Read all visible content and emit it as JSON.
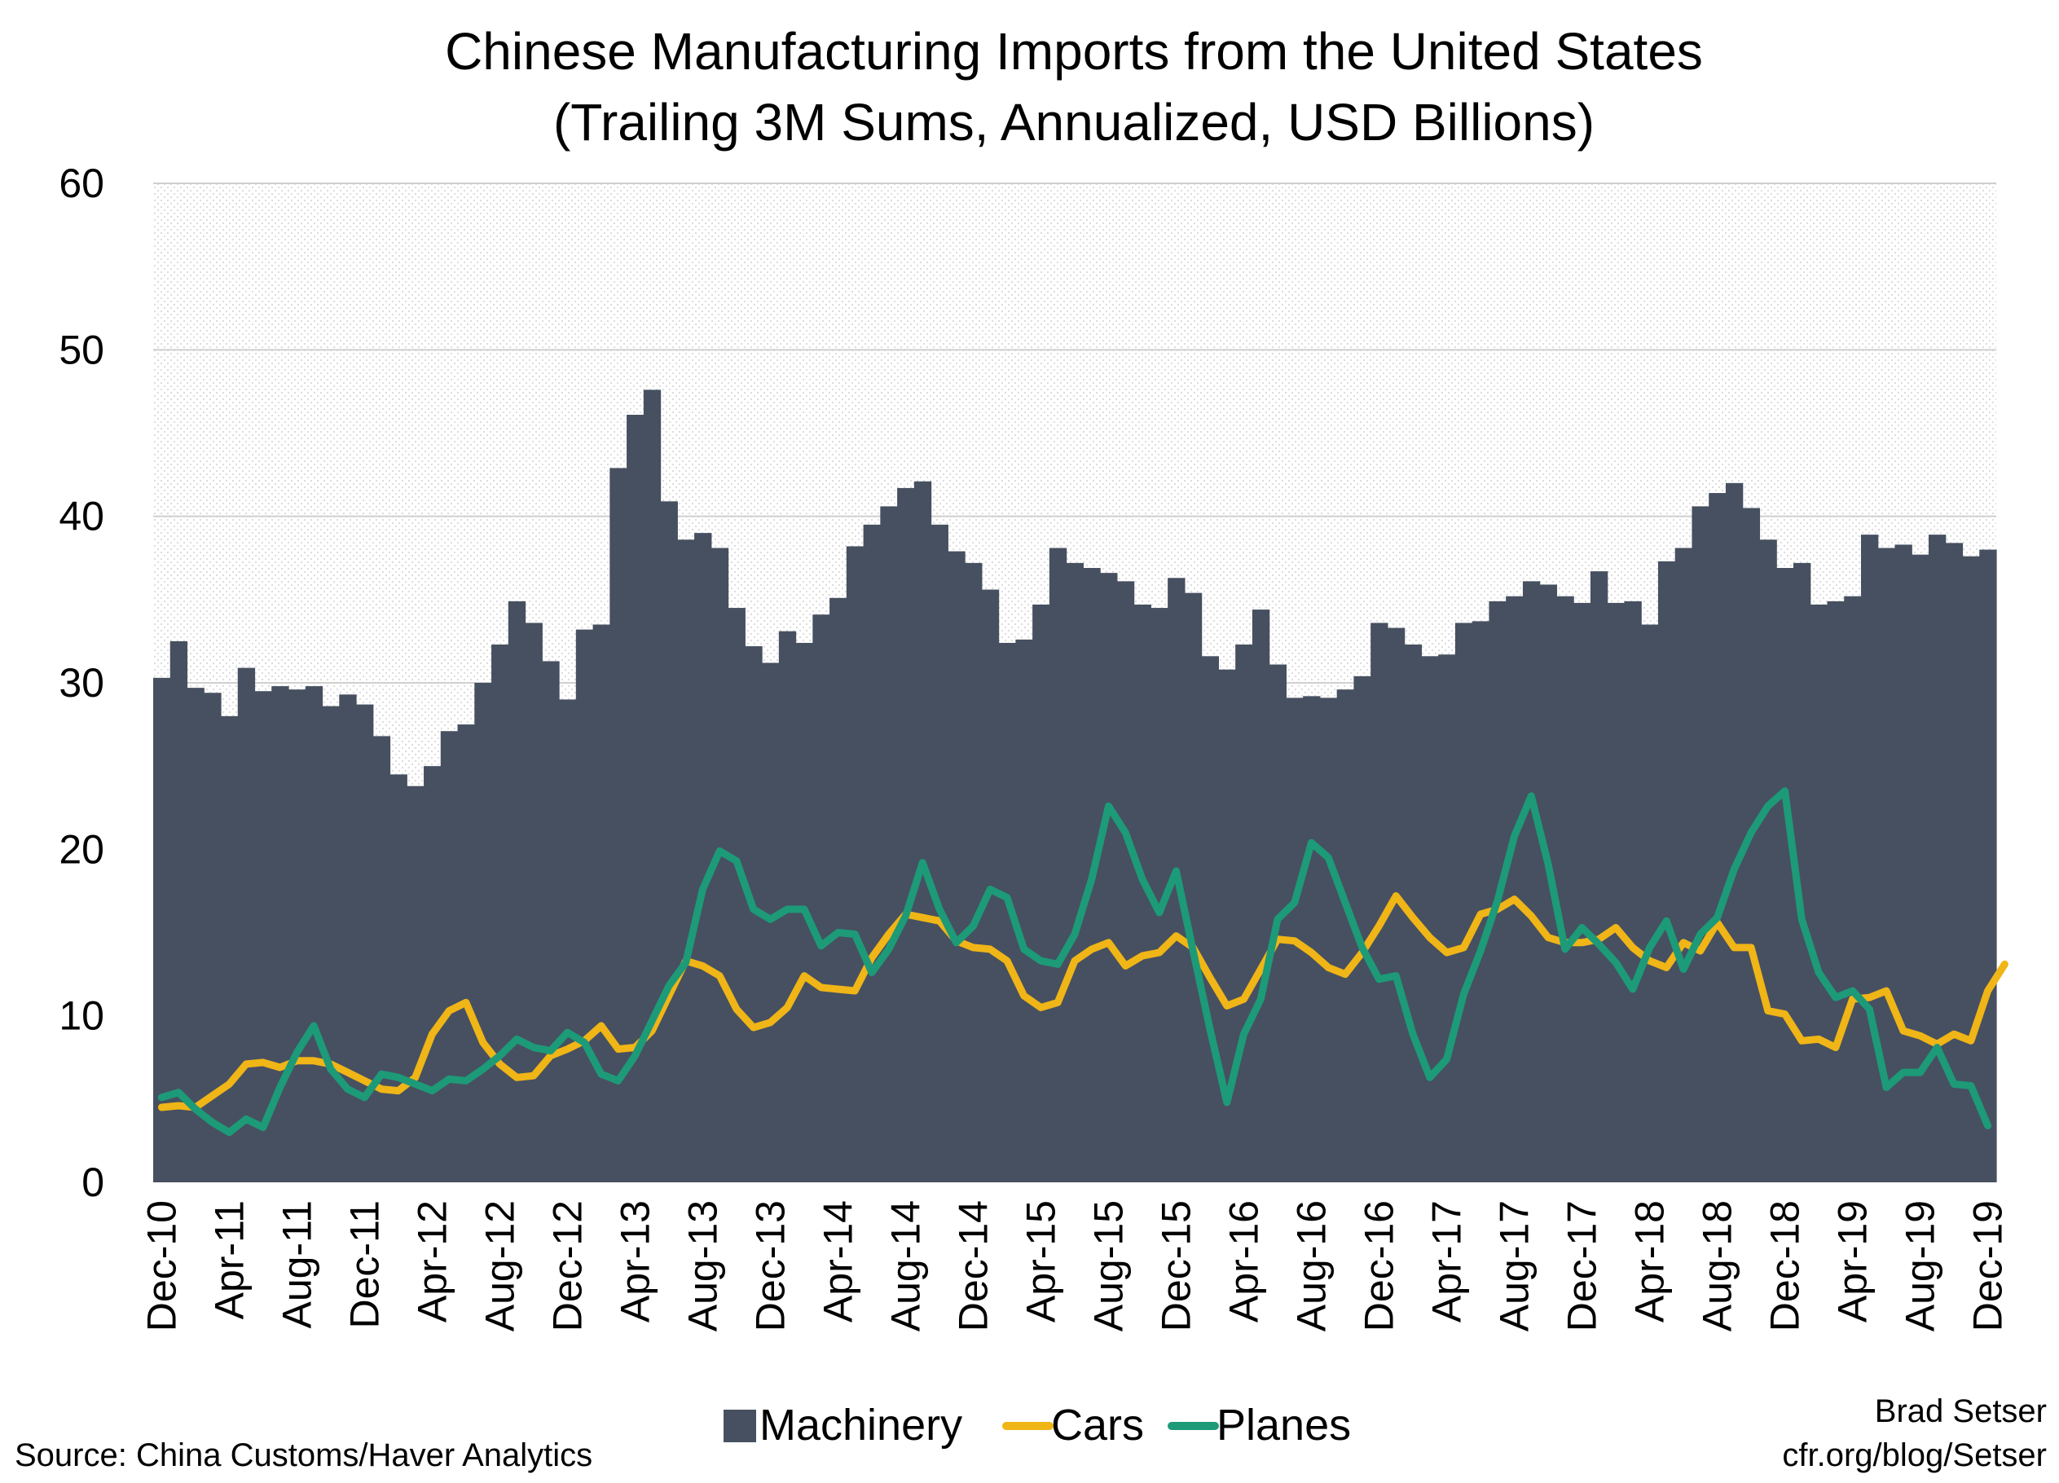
{
  "chart_data": {
    "type": "bar",
    "title": "Chinese Manufacturing Imports from the United States",
    "subtitle": "(Trailing 3M Sums, Annualized, USD Billions)",
    "ylim": [
      0,
      60
    ],
    "yticks": [
      0,
      10,
      20,
      30,
      40,
      50,
      60
    ],
    "xtick_labels": [
      "Dec-10",
      "Apr-11",
      "Aug-11",
      "Dec-11",
      "Apr-12",
      "Aug-12",
      "Dec-12",
      "Apr-13",
      "Aug-13",
      "Dec-13",
      "Apr-14",
      "Aug-14",
      "Dec-14",
      "Apr-15",
      "Aug-15",
      "Dec-15",
      "Apr-16",
      "Aug-16",
      "Dec-16",
      "Apr-17",
      "Aug-17",
      "Dec-17",
      "Apr-18",
      "Aug-18",
      "Dec-18",
      "Apr-19",
      "Aug-19",
      "Dec-19"
    ],
    "grid": true,
    "legend_position": "bottom",
    "series": [
      {
        "name": "Machinery",
        "kind": "bar",
        "color": "#465060",
        "values": [
          30.3,
          32.5,
          29.7,
          29.4,
          28.0,
          30.9,
          29.5,
          29.8,
          29.6,
          29.8,
          28.6,
          29.3,
          28.7,
          26.8,
          24.5,
          23.8,
          25.0,
          27.1,
          27.5,
          30.0,
          32.3,
          34.9,
          33.6,
          31.3,
          29.0,
          33.2,
          33.5,
          42.9,
          46.1,
          47.6,
          40.9,
          38.6,
          39.0,
          38.1,
          34.5,
          32.2,
          31.2,
          33.1,
          32.4,
          34.1,
          35.1,
          38.2,
          39.5,
          40.6,
          41.7,
          42.1,
          39.5,
          37.9,
          37.2,
          35.6,
          32.4,
          32.6,
          34.7,
          38.1,
          37.2,
          36.9,
          36.6,
          36.1,
          34.7,
          34.5,
          36.3,
          35.4,
          31.6,
          30.8,
          32.3,
          34.4,
          31.1,
          29.1,
          29.2,
          29.1,
          29.6,
          30.4,
          33.6,
          33.3,
          32.3,
          31.6,
          31.7,
          33.6,
          33.7,
          34.9,
          35.2,
          36.1,
          35.9,
          35.2,
          34.8,
          36.7,
          34.8,
          34.9,
          33.5,
          37.3,
          38.1,
          40.6,
          41.4,
          42.0,
          40.5,
          38.6,
          36.9,
          37.2,
          34.7,
          34.9,
          35.2,
          38.9,
          38.1,
          38.3,
          37.7,
          38.9,
          38.4,
          37.6,
          38.0
        ]
      },
      {
        "name": "Cars",
        "kind": "line",
        "color": "#F0B516",
        "values": [
          4.5,
          4.6,
          4.5,
          5.2,
          5.9,
          7.1,
          7.2,
          6.9,
          7.3,
          7.3,
          7.1,
          6.6,
          6.1,
          5.6,
          5.5,
          6.3,
          8.9,
          10.3,
          10.8,
          8.4,
          7.1,
          6.3,
          6.4,
          7.6,
          8.0,
          8.5,
          9.4,
          8.0,
          8.1,
          9.1,
          11.2,
          13.3,
          13.0,
          12.4,
          10.4,
          9.3,
          9.6,
          10.5,
          12.4,
          11.7,
          11.6,
          11.5,
          13.5,
          14.9,
          16.1,
          15.9,
          15.7,
          14.5,
          14.1,
          14.0,
          13.3,
          11.2,
          10.5,
          10.8,
          13.3,
          14.0,
          14.4,
          13.0,
          13.6,
          13.8,
          14.8,
          14.1,
          12.3,
          10.6,
          11.0,
          12.8,
          14.6,
          14.5,
          13.8,
          12.9,
          12.5,
          13.8,
          15.4,
          17.2,
          15.9,
          14.7,
          13.8,
          14.1,
          16.1,
          16.4,
          17.0,
          16.0,
          14.7,
          14.4,
          14.4,
          14.6,
          15.3,
          14.1,
          13.3,
          12.9,
          14.4,
          13.9,
          15.6,
          14.1,
          14.1,
          10.3,
          10.1,
          8.5,
          8.6,
          8.1,
          11.0,
          11.1,
          11.5,
          9.1,
          8.8,
          8.3,
          8.9,
          8.5,
          11.5,
          13.1
        ]
      },
      {
        "name": "Planes",
        "kind": "line",
        "color": "#1D9A78",
        "values": [
          5.1,
          5.4,
          4.4,
          3.6,
          3.0,
          3.8,
          3.3,
          5.7,
          7.8,
          9.4,
          6.8,
          5.6,
          5.1,
          6.5,
          6.3,
          5.9,
          5.5,
          6.2,
          6.1,
          6.8,
          7.6,
          8.6,
          8.1,
          7.9,
          9.0,
          8.4,
          6.5,
          6.1,
          7.6,
          9.7,
          11.8,
          13.2,
          17.6,
          19.9,
          19.3,
          16.4,
          15.8,
          16.4,
          16.4,
          14.2,
          15.0,
          14.9,
          12.6,
          14.0,
          16.0,
          19.2,
          16.4,
          14.4,
          15.4,
          17.6,
          17.1,
          14.0,
          13.3,
          13.1,
          14.9,
          18.2,
          22.6,
          21.0,
          18.2,
          16.2,
          18.7,
          13.9,
          9.2,
          4.8,
          8.9,
          11.0,
          15.8,
          16.8,
          20.4,
          19.5,
          16.8,
          14.1,
          12.2,
          12.4,
          8.9,
          6.3,
          7.4,
          11.3,
          13.9,
          16.9,
          20.8,
          23.2,
          19.1,
          14.0,
          15.3,
          14.3,
          13.2,
          11.6,
          14.1,
          15.7,
          12.8,
          14.9,
          15.9,
          18.8,
          21.0,
          22.6,
          23.5,
          15.8,
          12.6,
          11.1,
          11.5,
          10.4,
          5.7,
          6.6,
          6.6,
          8.1,
          5.9,
          5.8,
          3.4
        ]
      }
    ]
  },
  "legend": {
    "items": [
      "Machinery",
      "Cars",
      "Planes"
    ]
  },
  "footer": {
    "source": "Source: China Customs/Haver Analytics",
    "author_line1": "Brad Setser",
    "author_line2": "cfr.org/blog/Setser"
  }
}
